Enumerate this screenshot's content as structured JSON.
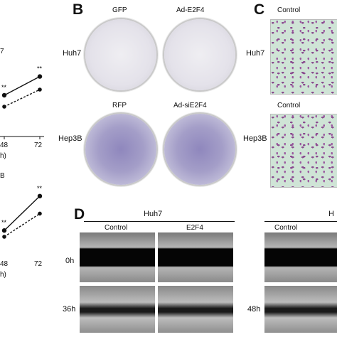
{
  "panel_a_partial": {
    "top_chart": {
      "cell_label_fragment": "7",
      "x_ticks": [
        "48",
        "72"
      ],
      "x_unit_fragment": "h)",
      "significance": [
        "**",
        "**"
      ]
    },
    "bottom_chart": {
      "cell_label_fragment": "B",
      "x_ticks": [
        "48",
        "72"
      ],
      "x_unit_fragment": "h)",
      "significance": [
        "**",
        "**"
      ]
    }
  },
  "panel_b": {
    "letter": "B",
    "col_top": [
      "GFP",
      "Ad-E2F4"
    ],
    "col_bottom": [
      "RFP",
      "Ad-siE2F4"
    ],
    "rows": [
      "Huh7",
      "Hep3B"
    ]
  },
  "panel_c": {
    "letter": "C",
    "cols": [
      "Control",
      "Control"
    ],
    "rows": [
      "Huh7",
      "Hep3B"
    ]
  },
  "panel_d": {
    "letter": "D",
    "group1": "Huh7",
    "group2_fragment": "H",
    "cols": [
      "Control",
      "E2F4",
      "Control"
    ],
    "rows": [
      "0h",
      "36h",
      "48h"
    ]
  },
  "chart_data": [
    {
      "type": "line",
      "title": "",
      "xlabel": "",
      "ylabel": "",
      "x": [
        "48",
        "72"
      ],
      "series": [
        {
          "values": [
            0.45,
            0.78
          ]
        },
        {
          "values": [
            0.25,
            0.55
          ]
        }
      ],
      "annotations": [
        "**",
        "**"
      ]
    },
    {
      "type": "line",
      "title": "",
      "xlabel": "",
      "ylabel": "",
      "x": [
        "48",
        "72"
      ],
      "series": [
        {
          "values": [
            0.25,
            0.62
          ]
        },
        {
          "values": [
            0.35,
            0.9
          ]
        }
      ],
      "annotations": [
        "**",
        "**"
      ]
    }
  ]
}
